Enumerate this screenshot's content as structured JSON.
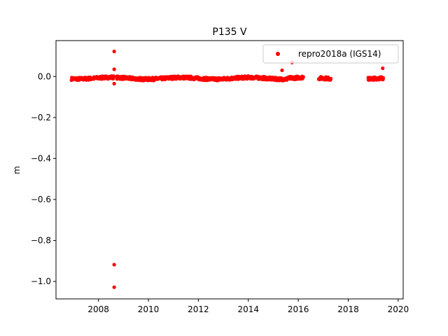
{
  "chart_data": {
    "type": "scatter",
    "title": "P135 V",
    "xlabel": "",
    "ylabel": "m",
    "xlim": [
      2006.3,
      2020.2
    ],
    "ylim": [
      -1.085,
      0.175
    ],
    "xticks": [
      2008,
      2010,
      2012,
      2014,
      2016,
      2018,
      2020
    ],
    "xtick_labels": [
      "2008",
      "2010",
      "2012",
      "2014",
      "2016",
      "2018",
      "2020"
    ],
    "yticks": [
      0.0,
      -0.2,
      -0.4,
      -0.6,
      -0.8,
      -1.0
    ],
    "ytick_labels": [
      "0.0",
      "−0.2",
      "−0.4",
      "−0.6",
      "−0.8",
      "−1.0"
    ],
    "grid": false,
    "legend_position": "top-right",
    "series": [
      {
        "name": "repro2018a (IGS14)",
        "color": "#ff0000",
        "segments": [
          {
            "x_start": 2006.92,
            "x_end": 2008.6,
            "y": -0.008,
            "note_points": 120
          },
          {
            "x_start": 2008.72,
            "x_end": 2015.55,
            "y": -0.009,
            "note_points": 600
          },
          {
            "x_start": 2015.55,
            "x_end": 2016.2,
            "y": -0.005,
            "note_points": 60
          },
          {
            "x_start": 2016.82,
            "x_end": 2017.3,
            "y": -0.012,
            "note_points": 40
          },
          {
            "x_start": 2018.8,
            "x_end": 2019.4,
            "y": -0.012,
            "note_points": 60
          }
        ],
        "outliers": [
          {
            "x": 2008.63,
            "y": 0.122
          },
          {
            "x": 2008.63,
            "y": 0.035
          },
          {
            "x": 2008.63,
            "y": -0.035
          },
          {
            "x": 2008.63,
            "y": -0.918
          },
          {
            "x": 2008.63,
            "y": -1.028
          },
          {
            "x": 2015.75,
            "y": 0.068
          },
          {
            "x": 2015.35,
            "y": 0.03
          },
          {
            "x": 2019.38,
            "y": 0.04
          }
        ]
      }
    ]
  }
}
